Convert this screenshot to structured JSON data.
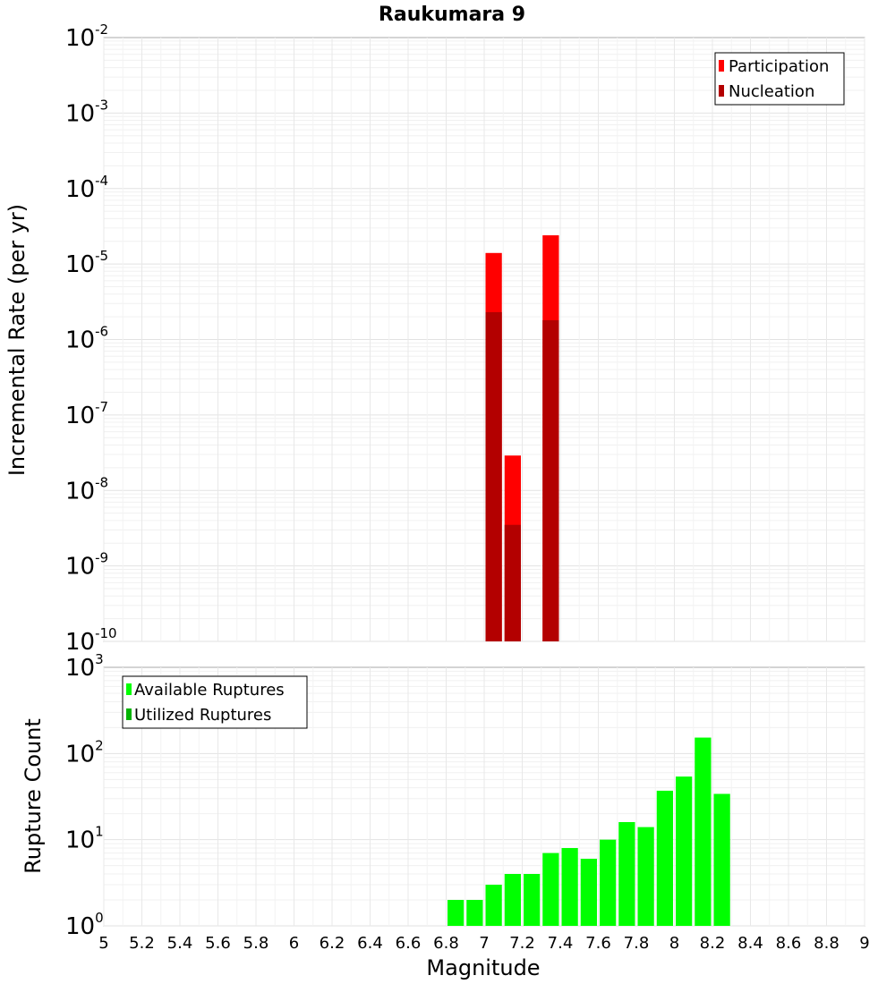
{
  "chart_data": [
    {
      "type": "bar",
      "title": "Raukumara 9",
      "xlabel": "",
      "ylabel": "Incremental Rate (per yr)",
      "yscale": "log",
      "xlim": [
        5,
        9
      ],
      "ylim_exp": [
        -10,
        -2
      ],
      "bin_width": 0.1,
      "legend_position": "top-right",
      "series": [
        {
          "name": "Participation",
          "color": "#ff0000",
          "points": [
            {
              "x": 7.05,
              "y": 1.4e-05
            },
            {
              "x": 7.15,
              "y": 2.9e-08
            },
            {
              "x": 7.35,
              "y": 2.4e-05
            }
          ]
        },
        {
          "name": "Nucleation",
          "color": "#b30000",
          "points": [
            {
              "x": 7.05,
              "y": 2.3e-06
            },
            {
              "x": 7.15,
              "y": 3.5e-09
            },
            {
              "x": 7.35,
              "y": 1.8e-06
            }
          ]
        }
      ]
    },
    {
      "type": "bar",
      "title": "",
      "xlabel": "Magnitude",
      "ylabel": "Rupture Count",
      "yscale": "log",
      "xlim": [
        5,
        9
      ],
      "ylim_exp": [
        0,
        3
      ],
      "bin_width": 0.1,
      "legend_position": "top-left",
      "x_ticks": [
        "5",
        "5.2",
        "5.4",
        "5.6",
        "5.8",
        "6",
        "6.2",
        "6.4",
        "6.6",
        "6.8",
        "7",
        "7.2",
        "7.4",
        "7.6",
        "7.8",
        "8",
        "8.2",
        "8.4",
        "8.6",
        "8.8",
        "9"
      ],
      "series": [
        {
          "name": "Available Ruptures",
          "color": "#00ff00",
          "points": [
            {
              "x": 6.25,
              "y": 1
            },
            {
              "x": 6.85,
              "y": 2
            },
            {
              "x": 6.95,
              "y": 2
            },
            {
              "x": 7.05,
              "y": 3
            },
            {
              "x": 7.15,
              "y": 4
            },
            {
              "x": 7.25,
              "y": 4
            },
            {
              "x": 7.35,
              "y": 7
            },
            {
              "x": 7.45,
              "y": 8
            },
            {
              "x": 7.55,
              "y": 6
            },
            {
              "x": 7.65,
              "y": 10
            },
            {
              "x": 7.75,
              "y": 16
            },
            {
              "x": 7.85,
              "y": 14
            },
            {
              "x": 7.95,
              "y": 37
            },
            {
              "x": 8.05,
              "y": 54
            },
            {
              "x": 8.15,
              "y": 153
            },
            {
              "x": 8.25,
              "y": 34
            },
            {
              "x": 8.35,
              "y": 1
            }
          ]
        },
        {
          "name": "Utilized Ruptures",
          "color": "#00b300",
          "points": [
            {
              "x": 7.05,
              "y": 1
            },
            {
              "x": 7.15,
              "y": 1
            },
            {
              "x": 7.35,
              "y": 1
            }
          ]
        }
      ]
    }
  ]
}
